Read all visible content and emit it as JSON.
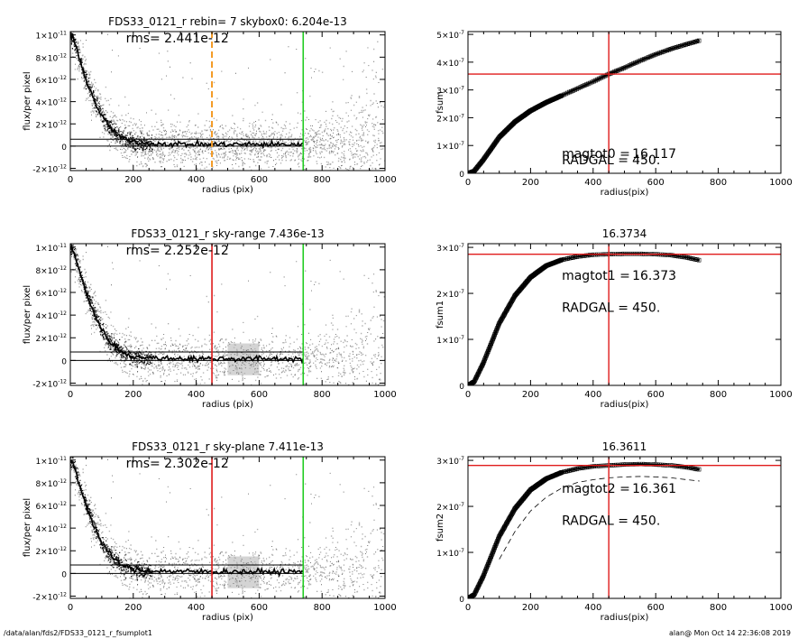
{
  "footer": {
    "path": "/data/alan/fds2/FDS33_0121_r_fsumplot1",
    "stamp": "alan@  Mon Oct 14 22:36:08 2019"
  },
  "colors": {
    "red": "#e01b1b",
    "green": "#22cc22",
    "orange": "#f39a24",
    "scatter_light": "#b3b3b3",
    "scatter_dark": "#555555"
  },
  "chart_data": [
    {
      "type": "scatter",
      "title": "FDS33_0121_r rebin= 7    skybox0:  6.204e-13",
      "annotation": "rms= 2.441e-12",
      "xlabel": "radius (pix)",
      "ylabel": "flux/per pixel",
      "xlim": [
        0,
        1000
      ],
      "ylim": [
        -2.2e-12,
        1.03e-11
      ],
      "xticks": [
        "0",
        "200",
        "400",
        "600",
        "800",
        "1000"
      ],
      "yticks": [
        {
          "v": -2e-12,
          "m": "-2×10",
          "e": "-12"
        },
        {
          "v": 0,
          "m": "0",
          "e": ""
        },
        {
          "v": 2e-12,
          "m": "2×10",
          "e": "-12"
        },
        {
          "v": 4e-12,
          "m": "4×10",
          "e": "-12"
        },
        {
          "v": 6e-12,
          "m": "6×10",
          "e": "-12"
        },
        {
          "v": 8e-12,
          "m": "8×10",
          "e": "-12"
        },
        {
          "v": 1e-11,
          "m": "1×10",
          "e": "-11"
        }
      ],
      "profile": {
        "x": [
          0,
          10,
          25,
          50,
          75,
          100,
          125,
          150,
          175,
          200,
          250,
          300,
          400,
          500,
          600,
          740
        ],
        "y": [
          1e-11,
          9.6e-12,
          8.2e-12,
          6e-12,
          4.2e-12,
          2.7e-12,
          1.7e-12,
          1e-12,
          6e-13,
          3.5e-13,
          2.3e-13,
          2e-13,
          1.6e-13,
          1.6e-13,
          1.5e-13,
          1.5e-13
        ]
      },
      "hlines": [
        6.204e-13,
        0
      ],
      "vlines": [
        {
          "x": 450,
          "color": "#f39a24",
          "dash": true
        },
        {
          "x": 740,
          "color": "#22cc22",
          "dash": false
        }
      ],
      "band": null
    },
    {
      "type": "scatter",
      "title": "FDS33_0121_r sky-range  7.436e-13",
      "annotation": "rms= 2.252e-12",
      "xlabel": "radius (pix)",
      "ylabel": "flux/per pixel",
      "xlim": [
        0,
        1000
      ],
      "ylim": [
        -2.2e-12,
        1.03e-11
      ],
      "xticks": [
        "0",
        "200",
        "400",
        "600",
        "800",
        "1000"
      ],
      "yticks": [
        {
          "v": -2e-12,
          "m": "-2×10",
          "e": "-12"
        },
        {
          "v": 0,
          "m": "0",
          "e": ""
        },
        {
          "v": 2e-12,
          "m": "2×10",
          "e": "-12"
        },
        {
          "v": 4e-12,
          "m": "4×10",
          "e": "-12"
        },
        {
          "v": 6e-12,
          "m": "6×10",
          "e": "-12"
        },
        {
          "v": 8e-12,
          "m": "8×10",
          "e": "-12"
        },
        {
          "v": 1e-11,
          "m": "1×10",
          "e": "-11"
        }
      ],
      "profile": {
        "x": [
          0,
          10,
          25,
          50,
          75,
          100,
          125,
          150,
          175,
          200,
          250,
          300,
          400,
          500,
          600,
          740
        ],
        "y": [
          1e-11,
          9.6e-12,
          8.2e-12,
          6e-12,
          4.2e-12,
          2.7e-12,
          1.7e-12,
          1e-12,
          6e-13,
          3.5e-13,
          2.3e-13,
          2e-13,
          1.6e-13,
          1.6e-13,
          1.5e-13,
          1.5e-13
        ]
      },
      "hlines": [
        7.436e-13,
        0
      ],
      "vlines": [
        {
          "x": 450,
          "color": "#e01b1b",
          "dash": false
        },
        {
          "x": 740,
          "color": "#22cc22",
          "dash": false
        }
      ],
      "band": [
        500,
        600
      ]
    },
    {
      "type": "scatter",
      "title": "FDS33_0121_r sky-plane  7.411e-13",
      "annotation": "rms= 2.302e-12",
      "xlabel": "radius (pix)",
      "ylabel": "flux/per pixel",
      "xlim": [
        0,
        1000
      ],
      "ylim": [
        -2.2e-12,
        1.03e-11
      ],
      "xticks": [
        "0",
        "200",
        "400",
        "600",
        "800",
        "1000"
      ],
      "yticks": [
        {
          "v": -2e-12,
          "m": "-2×10",
          "e": "-12"
        },
        {
          "v": 0,
          "m": "0",
          "e": ""
        },
        {
          "v": 2e-12,
          "m": "2×10",
          "e": "-12"
        },
        {
          "v": 4e-12,
          "m": "4×10",
          "e": "-12"
        },
        {
          "v": 6e-12,
          "m": "6×10",
          "e": "-12"
        },
        {
          "v": 8e-12,
          "m": "8×10",
          "e": "-12"
        },
        {
          "v": 1e-11,
          "m": "1×10",
          "e": "-11"
        }
      ],
      "profile": {
        "x": [
          0,
          10,
          25,
          50,
          75,
          100,
          125,
          150,
          175,
          200,
          250,
          300,
          400,
          500,
          600,
          740
        ],
        "y": [
          1e-11,
          9.6e-12,
          8.2e-12,
          6e-12,
          4.2e-12,
          2.7e-12,
          1.7e-12,
          1e-12,
          6e-13,
          3.5e-13,
          2.3e-13,
          2e-13,
          1.6e-13,
          1.6e-13,
          1.5e-13,
          1.5e-13
        ]
      },
      "hlines": [
        7.411e-13,
        0
      ],
      "vlines": [
        {
          "x": 450,
          "color": "#e01b1b",
          "dash": false
        },
        {
          "x": 740,
          "color": "#22cc22",
          "dash": false
        }
      ],
      "band": [
        500,
        600
      ]
    },
    {
      "type": "line",
      "title": "",
      "xlabel": "radius(pix)",
      "ylabel": "fsum",
      "xlim": [
        0,
        1000
      ],
      "ylim": [
        0,
        5.1e-07
      ],
      "xticks": [
        "0",
        "200",
        "400",
        "600",
        "800",
        "1000"
      ],
      "yticks": [
        {
          "v": 0,
          "m": "0",
          "e": ""
        },
        {
          "v": 1e-07,
          "m": "1×10",
          "e": "-7"
        },
        {
          "v": 2e-07,
          "m": "2×10",
          "e": "-7"
        },
        {
          "v": 3e-07,
          "m": "3×10",
          "e": "-7"
        },
        {
          "v": 4e-07,
          "m": "4×10",
          "e": "-7"
        },
        {
          "v": 5e-07,
          "m": "5×10",
          "e": "-7"
        }
      ],
      "curve": {
        "x": [
          0,
          20,
          50,
          100,
          150,
          200,
          250,
          300,
          350,
          400,
          450,
          500,
          550,
          600,
          650,
          700,
          740
        ],
        "y": [
          0,
          8e-09,
          5e-08,
          1.3e-07,
          1.85e-07,
          2.25e-07,
          2.55e-07,
          2.8e-07,
          3.05e-07,
          3.3e-07,
          3.57e-07,
          3.8e-07,
          4.05e-07,
          4.28e-07,
          4.48e-07,
          4.65e-07,
          4.78e-07
        ]
      },
      "dashed_curve": null,
      "crosshair": {
        "x": 450,
        "y": 3.57e-07
      },
      "labels": [
        {
          "key": "magtot0 =",
          "value": "16.117",
          "at": [
            300,
            5.6e-08
          ]
        },
        {
          "key": "RADGAL =",
          "value": "450.",
          "at": [
            300,
            3.2e-08
          ]
        }
      ]
    },
    {
      "type": "line",
      "title": "16.3734",
      "xlabel": "radius(pix)",
      "ylabel": "fsum1",
      "xlim": [
        0,
        1000
      ],
      "ylim": [
        0,
        3.08e-07
      ],
      "xticks": [
        "0",
        "200",
        "400",
        "600",
        "800",
        "1000"
      ],
      "yticks": [
        {
          "v": 0,
          "m": "0",
          "e": ""
        },
        {
          "v": 1e-07,
          "m": "1×10",
          "e": "-7"
        },
        {
          "v": 2e-07,
          "m": "2×10",
          "e": "-7"
        },
        {
          "v": 3e-07,
          "m": "3×10",
          "e": "-7"
        }
      ],
      "curve": {
        "x": [
          0,
          20,
          50,
          100,
          150,
          200,
          250,
          300,
          350,
          400,
          450,
          500,
          550,
          600,
          650,
          700,
          740
        ],
        "y": [
          0,
          8e-09,
          5e-08,
          1.35e-07,
          1.95e-07,
          2.35e-07,
          2.6e-07,
          2.73e-07,
          2.8e-07,
          2.84e-07,
          2.85e-07,
          2.86e-07,
          2.86e-07,
          2.85e-07,
          2.83e-07,
          2.78e-07,
          2.72e-07
        ]
      },
      "dashed_curve": null,
      "crosshair": {
        "x": 450,
        "y": 2.85e-07
      },
      "labels": [
        {
          "key": "magtot1 =",
          "value": "16.373",
          "at": [
            300,
            2.3e-07
          ]
        },
        {
          "key": "RADGAL =",
          "value": "450.",
          "at": [
            300,
            1.6e-07
          ]
        }
      ]
    },
    {
      "type": "line",
      "title": "16.3611",
      "xlabel": "radius(pix)",
      "ylabel": "fsum2",
      "xlim": [
        0,
        1000
      ],
      "ylim": [
        0,
        3.08e-07
      ],
      "xticks": [
        "0",
        "200",
        "400",
        "600",
        "800",
        "1000"
      ],
      "yticks": [
        {
          "v": 0,
          "m": "0",
          "e": ""
        },
        {
          "v": 1e-07,
          "m": "1×10",
          "e": "-7"
        },
        {
          "v": 2e-07,
          "m": "2×10",
          "e": "-7"
        },
        {
          "v": 3e-07,
          "m": "3×10",
          "e": "-7"
        }
      ],
      "curve": {
        "x": [
          0,
          20,
          50,
          100,
          150,
          200,
          250,
          300,
          350,
          400,
          450,
          500,
          550,
          600,
          650,
          700,
          740
        ],
        "y": [
          0,
          8e-09,
          5e-08,
          1.35e-07,
          1.95e-07,
          2.36e-07,
          2.6e-07,
          2.74e-07,
          2.82e-07,
          2.87e-07,
          2.89e-07,
          2.91e-07,
          2.92e-07,
          2.91e-07,
          2.89e-07,
          2.85e-07,
          2.8e-07
        ]
      },
      "dashed_curve": {
        "x": [
          100,
          150,
          200,
          250,
          300,
          350,
          400,
          450,
          500,
          550,
          600,
          650,
          700,
          740
        ],
        "y": [
          8.5e-08,
          1.45e-07,
          1.9e-07,
          2.2e-07,
          2.4e-07,
          2.52e-07,
          2.58e-07,
          2.62e-07,
          2.64e-07,
          2.65e-07,
          2.64e-07,
          2.62e-07,
          2.58e-07,
          2.55e-07
        ]
      },
      "crosshair": {
        "x": 450,
        "y": 2.89e-07
      },
      "labels": [
        {
          "key": "magtot2 =",
          "value": "16.361",
          "at": [
            300,
            2.3e-07
          ]
        },
        {
          "key": "RADGAL =",
          "value": "450.",
          "at": [
            300,
            1.6e-07
          ]
        }
      ]
    }
  ]
}
